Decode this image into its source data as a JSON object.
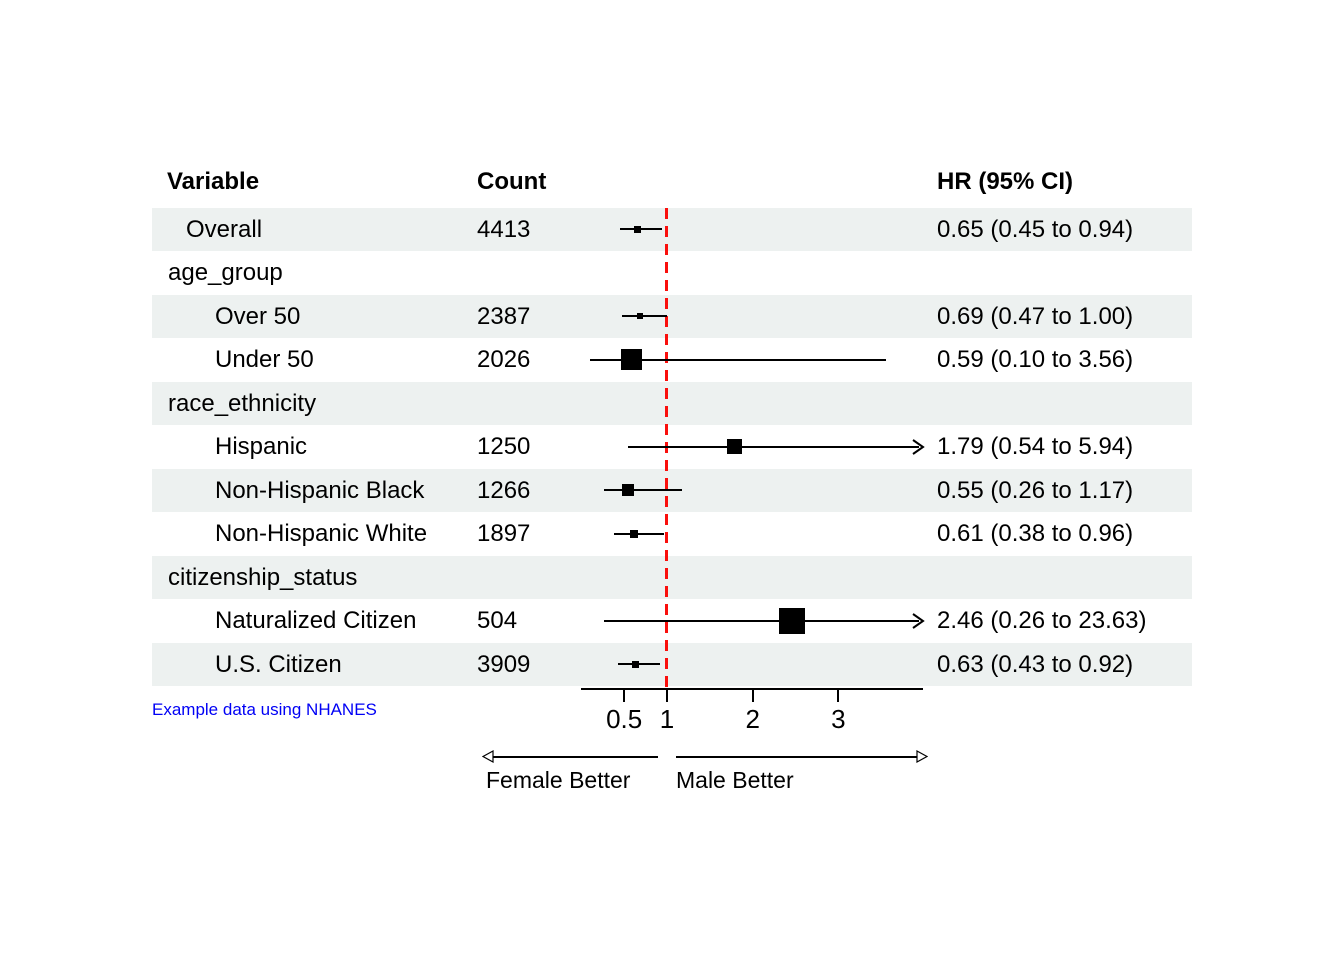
{
  "header": {
    "variable": "Variable",
    "count": "Count",
    "hr": "HR (95% CI)"
  },
  "note": "Example data using NHANES",
  "colors": {
    "stripe": "#edf1f0",
    "reference_line": "#fa0f0c",
    "marker": "#000000",
    "note_text": "#0000f5",
    "text": "#000000"
  },
  "chart_data": {
    "type": "forest",
    "title": "",
    "xlabel_left": "Female Better",
    "xlabel_right": "Male Better",
    "x_axis": {
      "scale": "linear",
      "range": [
        0,
        4
      ],
      "ticks": [
        0.5,
        1,
        2,
        3
      ],
      "tick_labels": [
        "0.5",
        "1",
        "2",
        "3"
      ],
      "reference_value": 1
    },
    "rows": [
      {
        "label": "Overall",
        "indent": 1,
        "count": "4413",
        "hr": 0.65,
        "low": 0.45,
        "high": 0.94,
        "hr_text": "0.65 (0.45 to 0.94)",
        "marker_size": 7,
        "striped": true
      },
      {
        "label": "age_group",
        "indent": 0,
        "group": true,
        "striped": false
      },
      {
        "label": "Over 50",
        "indent": 2,
        "count": "2387",
        "hr": 0.69,
        "low": 0.47,
        "high": 1.0,
        "hr_text": "0.69 (0.47 to 1.00)",
        "marker_size": 6,
        "striped": true
      },
      {
        "label": "Under 50",
        "indent": 2,
        "count": "2026",
        "hr": 0.59,
        "low": 0.1,
        "high": 3.56,
        "hr_text": "0.59 (0.10 to 3.56)",
        "marker_size": 21,
        "striped": false
      },
      {
        "label": "race_ethnicity",
        "indent": 0,
        "group": true,
        "striped": true
      },
      {
        "label": "Hispanic",
        "indent": 2,
        "count": "1250",
        "hr": 1.79,
        "low": 0.54,
        "high": 5.94,
        "hr_text": "1.79 (0.54 to 5.94)",
        "marker_size": 15,
        "striped": false
      },
      {
        "label": "Non-Hispanic Black",
        "indent": 2,
        "count": "1266",
        "hr": 0.55,
        "low": 0.26,
        "high": 1.17,
        "hr_text": "0.55 (0.26 to 1.17)",
        "marker_size": 12,
        "striped": true
      },
      {
        "label": "Non-Hispanic White",
        "indent": 2,
        "count": "1897",
        "hr": 0.61,
        "low": 0.38,
        "high": 0.96,
        "hr_text": "0.61 (0.38 to 0.96)",
        "marker_size": 8,
        "striped": false
      },
      {
        "label": "citizenship_status",
        "indent": 0,
        "group": true,
        "striped": true
      },
      {
        "label": "Naturalized Citizen",
        "indent": 2,
        "count": "504",
        "hr": 2.46,
        "low": 0.26,
        "high": 23.63,
        "hr_text": "2.46 (0.26 to 23.63)",
        "marker_size": 26,
        "striped": false
      },
      {
        "label": "U.S. Citizen",
        "indent": 2,
        "count": "3909",
        "hr": 0.63,
        "low": 0.43,
        "high": 0.92,
        "hr_text": "0.63 (0.43 to 0.92)",
        "marker_size": 7,
        "striped": true
      }
    ]
  }
}
